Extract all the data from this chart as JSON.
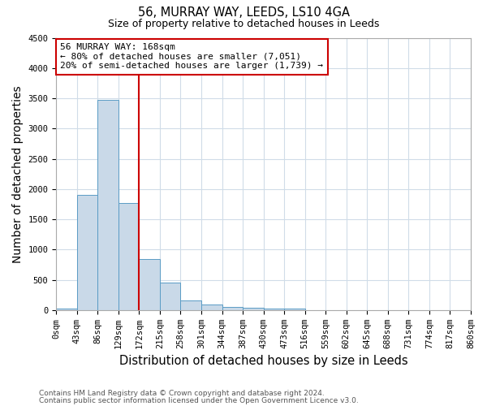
{
  "title": "56, MURRAY WAY, LEEDS, LS10 4GA",
  "subtitle": "Size of property relative to detached houses in Leeds",
  "xlabel": "Distribution of detached houses by size in Leeds",
  "ylabel": "Number of detached properties",
  "footnote1": "Contains HM Land Registry data © Crown copyright and database right 2024.",
  "footnote2": "Contains public sector information licensed under the Open Government Licence v3.0.",
  "bin_edges": [
    0,
    43,
    86,
    129,
    172,
    215,
    258,
    301,
    344,
    387,
    430,
    473,
    516,
    559,
    602,
    645,
    688,
    731,
    774,
    817,
    860
  ],
  "bar_heights": [
    30,
    1900,
    3480,
    1770,
    840,
    455,
    160,
    90,
    55,
    35,
    30,
    25,
    0,
    0,
    0,
    0,
    0,
    0,
    0,
    0
  ],
  "bar_color": "#c9d9e8",
  "bar_edge_color": "#5a9cc5",
  "vline_x": 172,
  "vline_color": "#cc0000",
  "annotation_text": "56 MURRAY WAY: 168sqm\n← 80% of detached houses are smaller (7,051)\n20% of semi-detached houses are larger (1,739) →",
  "annotation_box_color": "#cc0000",
  "ylim": [
    0,
    4500
  ],
  "xlim": [
    0,
    860
  ],
  "bg_color": "#ffffff",
  "grid_color": "#d0dce8",
  "tick_label_size": 7.5,
  "axis_label_size": 10,
  "title_fontsize": 10.5,
  "subtitle_fontsize": 9,
  "footnote_fontsize": 6.5
}
